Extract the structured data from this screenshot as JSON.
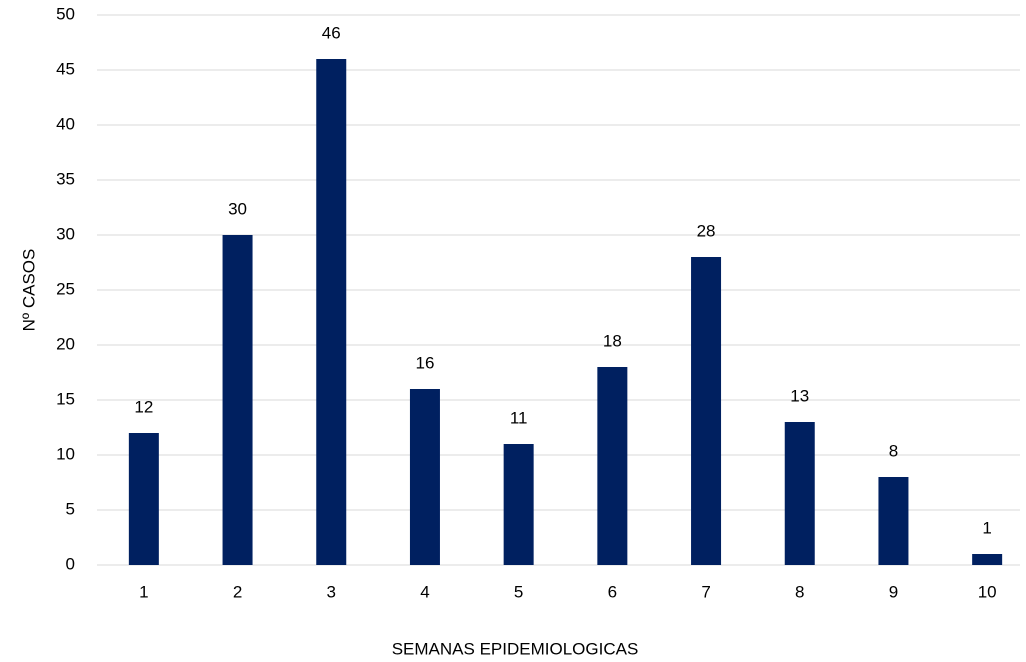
{
  "chart_data": {
    "type": "bar",
    "categories": [
      "1",
      "2",
      "3",
      "4",
      "5",
      "6",
      "7",
      "8",
      "9",
      "10"
    ],
    "values": [
      12,
      30,
      46,
      16,
      11,
      18,
      28,
      13,
      8,
      1
    ],
    "color": "#002060",
    "x_label": "SEMANAS EPIDEMIOLOGICAS",
    "y_label": "Nº CASOS",
    "ylim": [
      0,
      50
    ],
    "yticks": [
      0,
      5,
      10,
      15,
      20,
      25,
      30,
      35,
      40,
      45,
      50
    ],
    "grid": true,
    "data_labels": true
  }
}
